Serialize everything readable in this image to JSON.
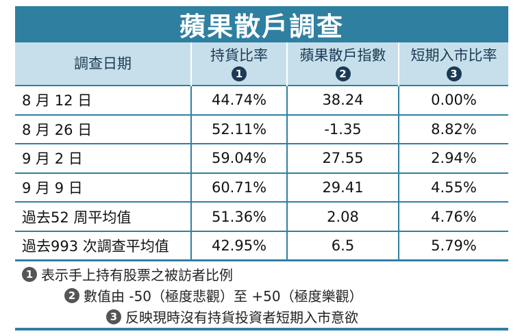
{
  "title": "蘋果散戶調查",
  "header": {
    "col1": "調查日期",
    "col2": "持貨比率",
    "col2_num": "1",
    "col3": "蘋果散戶指數",
    "col3_num": "2",
    "col4": "短期入市比率",
    "col4_num": "3"
  },
  "rows": [
    {
      "date": "8 月 12 日",
      "hold": "44.74%",
      "index": "38.24",
      "short": "0.00%"
    },
    {
      "date": "8 月 26 日",
      "hold": "52.11%",
      "index": "-1.35",
      "short": "8.82%"
    },
    {
      "date": "9 月 2 日",
      "hold": "59.04%",
      "index": "27.55",
      "short": "2.94%"
    },
    {
      "date": "9 月 9 日",
      "hold": "60.71%",
      "index": "29.41",
      "short": "4.55%"
    },
    {
      "date": "過去52 周平均值",
      "hold": "51.36%",
      "index": "2.08",
      "short": "4.76%"
    },
    {
      "date": "過去993 次調查平均值",
      "hold": "42.95%",
      "index": "6.5",
      "short": "5.79%"
    }
  ],
  "notes": [
    {
      "num": "1",
      "text": "表示手上持有股票之被訪者比例"
    },
    {
      "num": "2",
      "text": "數值由 -50（極度悲觀）至 +50（極度樂觀）"
    },
    {
      "num": "3",
      "text": "反映現時沒有持貨投資者短期入市意欲"
    }
  ],
  "colors": {
    "accent": "#2f7fa1",
    "header_bg": "#c7dfea"
  }
}
